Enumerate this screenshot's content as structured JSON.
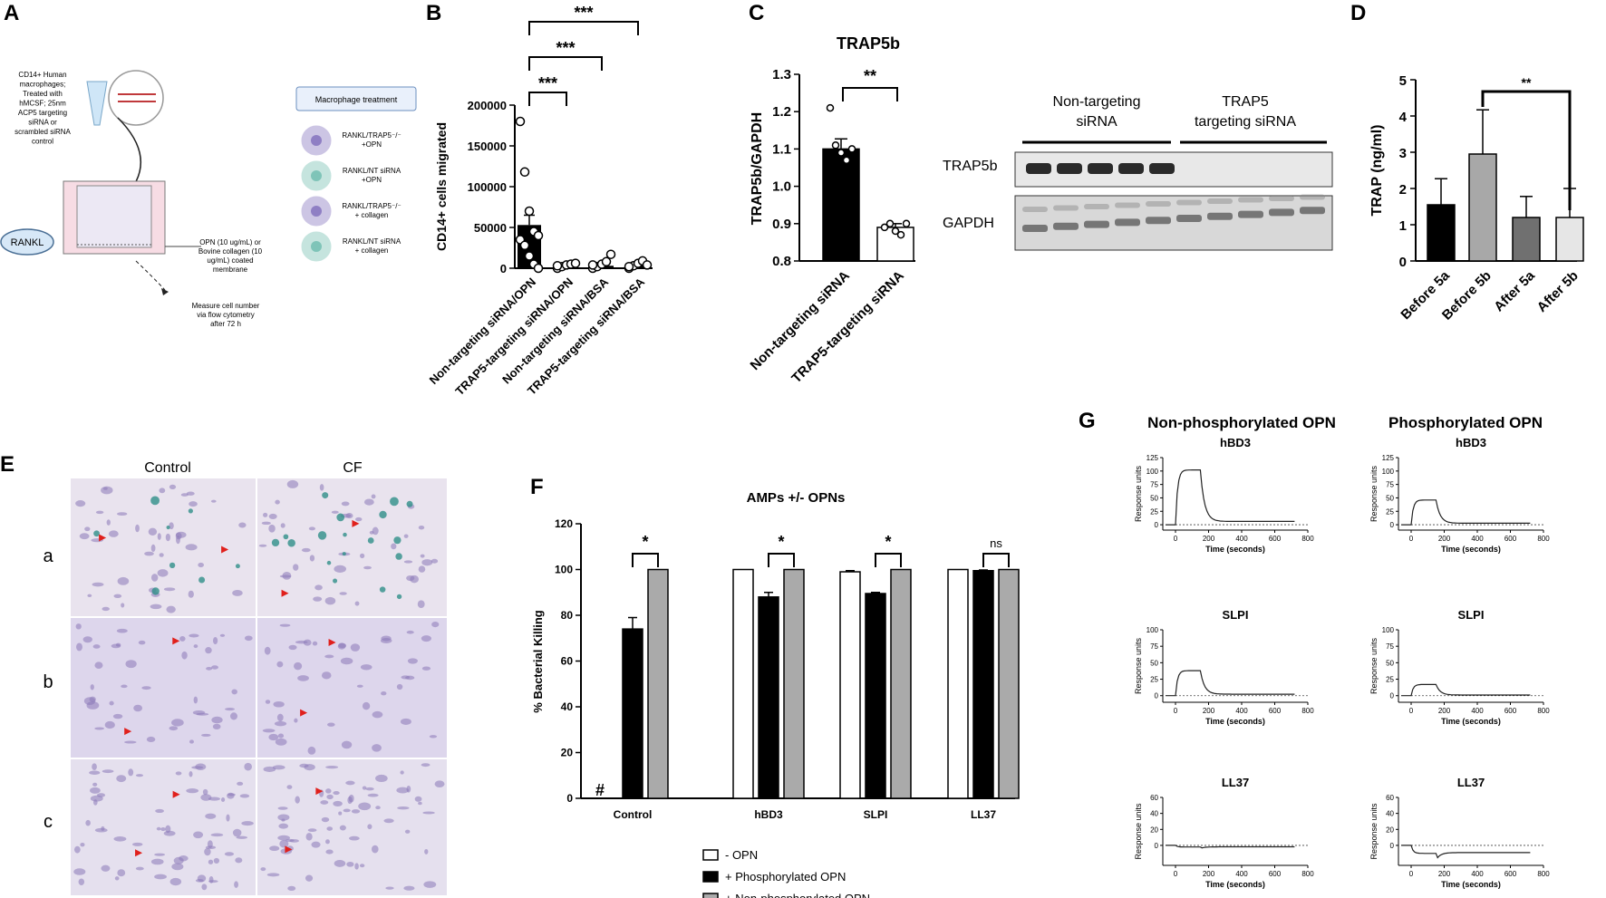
{
  "panels": {
    "A": "A",
    "B": "B",
    "C": "C",
    "D": "D",
    "E": "E",
    "F": "F",
    "G": "G"
  },
  "panelA": {
    "cells_text": [
      "CD14+ Human",
      "macrophages;",
      "Treated with",
      "hMCSF; 25nm",
      "ACP5 targeting",
      "siRNA or",
      "scrambled siRNA",
      "control"
    ],
    "rankl": "RANKL",
    "membrane_text": [
      "OPN (10 ug/mL) or",
      "Bovine collagen (10",
      "ug/mL) coated",
      "membrane"
    ],
    "measure_text": [
      "Measure cell number",
      "via flow cytometry",
      "after 72 h"
    ],
    "legend_title": "Macrophage treatment",
    "legend_items": [
      {
        "lines": [
          "RANKL/TRAP5⁻/⁻",
          "+OPN"
        ],
        "color": "#8f7fc4"
      },
      {
        "lines": [
          "RANKL/NT siRNA",
          "+OPN"
        ],
        "color": "#7fc4b8"
      },
      {
        "lines": [
          "RANKL/TRAP5⁻/⁻",
          "+ collagen"
        ],
        "color": "#8f7fc4"
      },
      {
        "lines": [
          "RANKL/NT siRNA",
          "+ collagen"
        ],
        "color": "#7fc4b8"
      }
    ]
  },
  "chart_data": [
    {
      "panel": "B",
      "type": "bar",
      "categories": [
        "Non-targeting siRNA/OPN",
        "TRAP5-targeting siRNA/OPN",
        "Non-targeting siRNA/BSA",
        "TRAP5-targeting siRNA/BSA"
      ],
      "values": [
        53000,
        3500,
        3000,
        3000
      ],
      "errors": [
        12000,
        1000,
        2000,
        1000
      ],
      "points": [
        [
          180000,
          118000,
          70000,
          45000,
          40000,
          35000,
          28000,
          15000,
          5000,
          0
        ],
        [
          0,
          2000,
          4000,
          5000,
          6000,
          3000
        ],
        [
          0,
          2000,
          5000,
          8000,
          17000,
          4000
        ],
        [
          0,
          3000,
          6000,
          9000,
          4000,
          2000
        ]
      ],
      "ylabel": "CD14+ cells migrated",
      "ylim": [
        0,
        200000
      ],
      "yticks": [
        "0",
        "50000",
        "100000",
        "150000",
        "200000"
      ],
      "sig": [
        "***",
        "***",
        "***"
      ]
    },
    {
      "panel": "C",
      "type": "bar",
      "title": "TRAP5b",
      "categories": [
        "Non-targeting siRNA",
        "TRAP5-targeting siRNA"
      ],
      "values": [
        1.1,
        0.89
      ],
      "errors": [
        0.027,
        0.01
      ],
      "points": [
        [
          1.21,
          1.11,
          1.09,
          1.07,
          1.1
        ],
        [
          0.89,
          0.9,
          0.88,
          0.87,
          0.9
        ]
      ],
      "ylabel": "TRAP5b/GAPDH",
      "ylim": [
        0.8,
        1.3
      ],
      "yticks": [
        "0.8",
        "0.9",
        "1.0",
        "1.1",
        "1.2",
        "1.3"
      ],
      "sig": [
        "**"
      ]
    },
    {
      "panel": "D",
      "type": "bar",
      "categories": [
        "Before 5a",
        "Before 5b",
        "After 5a",
        "After 5b"
      ],
      "values": [
        1.55,
        2.95,
        1.2,
        1.2
      ],
      "errors": [
        0.72,
        1.22,
        0.58,
        0.8
      ],
      "colors": [
        "#000000",
        "#a8a8a8",
        "#707070",
        "#e6e6e6"
      ],
      "ylabel": "TRAP (ng/ml)",
      "ylim": [
        0,
        5
      ],
      "yticks": [
        "0",
        "1",
        "2",
        "3",
        "4",
        "5"
      ],
      "sig": [
        "**"
      ]
    },
    {
      "panel": "F",
      "type": "bar",
      "title": "AMPs +/- OPNs",
      "categories": [
        "Control",
        "hBD3",
        "SLPI",
        "LL37"
      ],
      "series": [
        {
          "name": "- OPN",
          "values": [
            0,
            100,
            99,
            100
          ],
          "errors": [
            0,
            0,
            0.5,
            0
          ]
        },
        {
          "name": "+ Phosphorylated OPN",
          "values": [
            74,
            88,
            89.5,
            99.5
          ],
          "errors": [
            5,
            2,
            0.5,
            0.3
          ]
        },
        {
          "name": "+ Non-phosphorylated OPN",
          "values": [
            100,
            100,
            100,
            100
          ],
          "errors": [
            0,
            0,
            0,
            0
          ]
        }
      ],
      "ylabel": "% Bacterial Killing",
      "ylim": [
        0,
        120
      ],
      "yticks": [
        "0",
        "20",
        "40",
        "60",
        "80",
        "100",
        "120"
      ],
      "sig": [
        "*",
        "*",
        "*",
        "ns"
      ],
      "hash": "#"
    },
    {
      "panel": "G",
      "type": "line",
      "columns": [
        "Non-phosphorylated OPN",
        "Phosphorylated OPN"
      ],
      "rows": [
        "hBD3",
        "SLPI",
        "LL37"
      ],
      "xlabel": "Time (seconds)",
      "ylabel": "Response units",
      "xticks": [
        "0",
        "200",
        "400",
        "600",
        "800"
      ],
      "yticks": [
        [
          "0",
          "25",
          "50",
          "75",
          "100",
          "125"
        ],
        [
          "0",
          "25",
          "50",
          "75",
          "100"
        ],
        [
          "0",
          "20",
          "40",
          "60"
        ]
      ],
      "ymax": [
        125,
        100,
        60
      ],
      "plateau": [
        [
          102,
          46
        ],
        [
          38,
          17
        ],
        [
          -2,
          -10
        ]
      ]
    }
  ],
  "westernC": {
    "group1": "Non-targeting siRNA",
    "group2": "TRAP5 targeting siRNA",
    "band1": "TRAP5b",
    "band2": "GAPDH"
  },
  "panelE": {
    "cols": [
      "Control",
      "CF"
    ],
    "rows": [
      "a",
      "b",
      "c"
    ]
  }
}
